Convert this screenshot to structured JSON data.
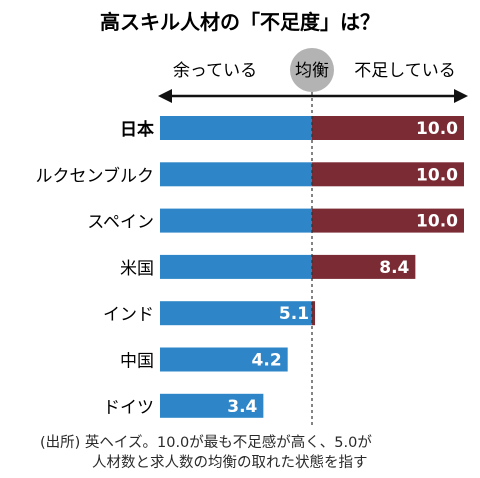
{
  "chart_data": {
    "type": "bar",
    "title": "高スキル人材の「不足度」は？",
    "axis_labels": {
      "left": "余っている",
      "center": "均衡",
      "right": "不足している"
    },
    "categories": [
      "日本",
      "ルクセンブルク",
      "スペイン",
      "米国",
      "インド",
      "中国",
      "ドイツ"
    ],
    "values": [
      10.0,
      10.0,
      10.0,
      8.4,
      5.1,
      4.2,
      3.4
    ],
    "value_labels": [
      "10.0",
      "10.0",
      "10.0",
      "8.4",
      "5.1",
      "4.2",
      "3.4"
    ],
    "highlight_category": "日本",
    "balance_value": 5.0,
    "xlim": [
      0,
      10
    ],
    "grid": false,
    "colors": {
      "surplus": "#2e86c8",
      "shortage": "#7a2b34",
      "center_circle": "#b3b3b3",
      "center_line": "#333333"
    },
    "note_lines": [
      "(出所) 英ヘイズ。10.0が最も不足感が高く、5.0が",
      "人材数と求人数の均衡の取れた状態を指す"
    ]
  }
}
